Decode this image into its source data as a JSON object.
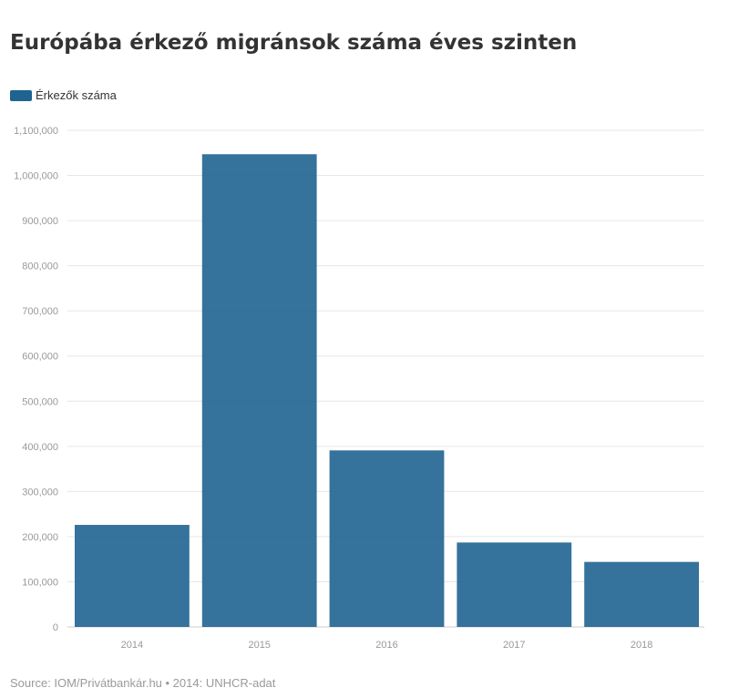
{
  "chart_data": {
    "type": "bar",
    "title": "Európába érkező migránsok száma éves szinten",
    "categories": [
      "2014",
      "2015",
      "2016",
      "2017",
      "2018"
    ],
    "series": [
      {
        "name": "Érkezők száma",
        "color": "#1f6391",
        "values": [
          226000,
          1047000,
          391000,
          187000,
          144000
        ]
      }
    ],
    "y_ticks": [
      0,
      100000,
      200000,
      300000,
      400000,
      500000,
      600000,
      700000,
      800000,
      900000,
      1000000,
      1100000
    ],
    "y_tick_labels": [
      "0",
      "100,000",
      "200,000",
      "300,000",
      "400,000",
      "500,000",
      "600,000",
      "700,000",
      "800,000",
      "900,000",
      "1,000,000",
      "1,100,000"
    ],
    "ylim": [
      0,
      1100000
    ],
    "grid": true,
    "legend_position": "top-left",
    "xlabel": "",
    "ylabel": ""
  },
  "footer": {
    "source": "Source: IOM/Privátbankár.hu • 2014: UNHCR-adat"
  },
  "colors": {
    "bar": "#1f6391",
    "grid": "#e6e6e6",
    "axis_text": "#999999"
  }
}
